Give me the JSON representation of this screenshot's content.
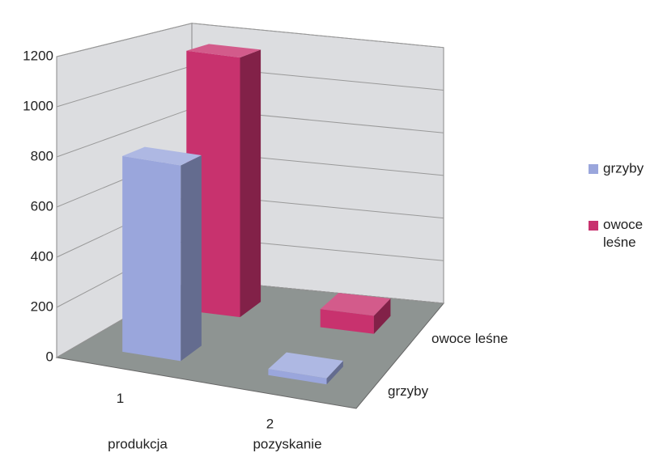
{
  "chart_data": {
    "type": "bar3d",
    "categories": [
      "1",
      "2"
    ],
    "group_labels": [
      "produkcja",
      "pozyskanie"
    ],
    "series": [
      {
        "name": "grzyby",
        "color": "#9aa6dc",
        "values": [
          800,
          25
        ]
      },
      {
        "name": "owoce leśne",
        "color": "#c8326e",
        "values": [
          1150,
          80
        ]
      }
    ],
    "ylim": [
      0,
      1200
    ],
    "yticks": [
      0,
      200,
      400,
      600,
      800,
      1000,
      1200
    ],
    "grid": true,
    "legend": "right"
  }
}
